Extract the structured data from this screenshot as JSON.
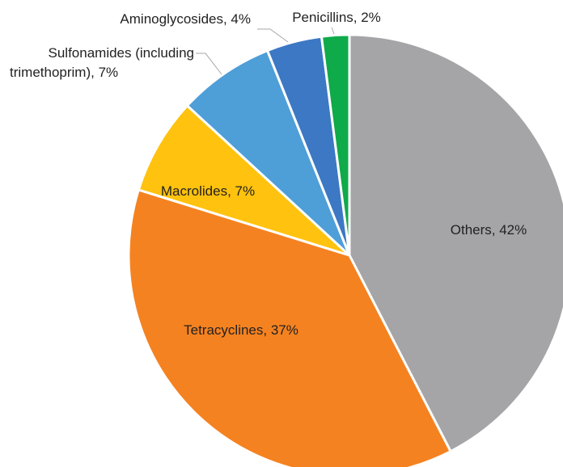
{
  "chart_data": {
    "type": "pie",
    "title": "",
    "legend": "none",
    "start_angle_deg": 0,
    "direction": "clockwise",
    "slices": [
      {
        "name": "Others",
        "value": 42,
        "color": "#A5A5A8",
        "label": "Others, 42%"
      },
      {
        "name": "Tetracyclines",
        "value": 37,
        "color": "#F58220",
        "label": "Tetracyclines, 37%"
      },
      {
        "name": "Macrolides",
        "value": 7,
        "color": "#FFC20E",
        "label": "Macrolides, 7%"
      },
      {
        "name": "Sulfonamides (including trimethoprim)",
        "value": 7,
        "color": "#4E9ED8",
        "label_lines": [
          "Sulfonamides (including",
          "trimethoprim), 7%"
        ]
      },
      {
        "name": "Aminoglycosides",
        "value": 4,
        "color": "#3C78C3",
        "label": "Aminoglycosides, 4%"
      },
      {
        "name": "Penicillins",
        "value": 2,
        "color": "#0FAA4A",
        "label": "Penicillins, 2%"
      }
    ]
  }
}
